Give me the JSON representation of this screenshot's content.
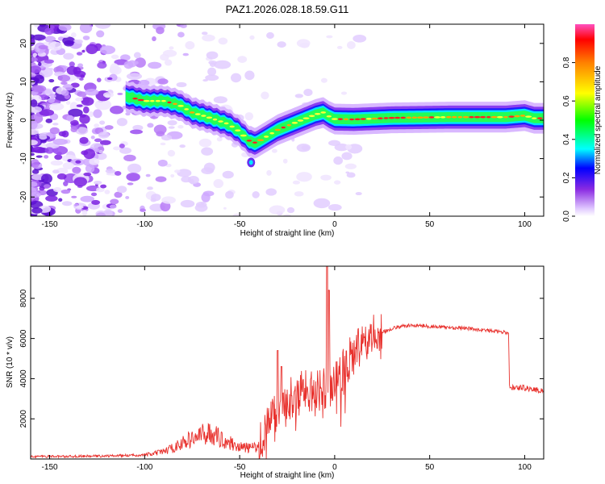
{
  "figure_title": "PAZ1.2026.028.18.59.G11",
  "colors": {
    "snr_line": "#e8312d",
    "ridge_core": "#ff2020"
  },
  "chart_data": [
    {
      "type": "heatmap",
      "name": "spectrogram",
      "title": "PAZ1.2026.028.18.59.G11",
      "xlabel": "Height of straight line (km)",
      "ylabel": "Frequency (Hz)",
      "xlim": [
        -160,
        110
      ],
      "ylim": [
        -25,
        25
      ],
      "x_ticks": [
        -150,
        -100,
        -50,
        0,
        50,
        100
      ],
      "x_tick_labels": [
        "-150",
        "-100",
        "-50",
        "0",
        "50",
        "100"
      ],
      "y_ticks": [
        -20,
        -10,
        0,
        10,
        20
      ],
      "y_tick_labels": [
        "-20",
        "-10",
        "0",
        "10",
        "20"
      ],
      "ridge_x": [
        -108,
        -100,
        -90,
        -82,
        -75,
        -68,
        -62,
        -56,
        -50,
        -46,
        -43,
        -40,
        -35,
        -30,
        -25,
        -20,
        -15,
        -10,
        -6,
        -3,
        0,
        10,
        30,
        60,
        90,
        100,
        105,
        110
      ],
      "ridge_y": [
        6,
        5,
        5,
        4,
        2,
        1,
        0,
        -1,
        -3,
        -5,
        -6,
        -5.5,
        -4,
        -2.5,
        -1.5,
        -0.5,
        0.5,
        1.5,
        2,
        1,
        0.3,
        0.2,
        0.6,
        0.8,
        0.8,
        1.2,
        0.5,
        0.5
      ],
      "colorbar": {
        "label": "Normalized spectral amplitude",
        "range": [
          0,
          1
        ],
        "ticks": [
          0,
          0.2,
          0.4,
          0.6,
          0.8
        ],
        "tick_labels": [
          "0.0",
          "0.2",
          "0.4",
          "0.6",
          "0.8"
        ]
      }
    },
    {
      "type": "line",
      "name": "snr",
      "xlabel": "Height of straight line (km)",
      "ylabel": "SNR (10 * v/v)",
      "xlim": [
        -160,
        110
      ],
      "ylim": [
        0,
        9600
      ],
      "x_ticks": [
        -150,
        -100,
        -50,
        0,
        50,
        100
      ],
      "x_tick_labels": [
        "-150",
        "-100",
        "-50",
        "0",
        "50",
        "100"
      ],
      "y_ticks": [
        2000,
        4000,
        6000,
        8000
      ],
      "y_tick_labels": [
        "2000",
        "4000",
        "6000",
        "8000"
      ],
      "series": [
        {
          "name": "SNR",
          "x": [
            -160,
            -140,
            -120,
            -100,
            -95,
            -90,
            -85,
            -80,
            -75,
            -70,
            -65,
            -60,
            -55,
            -50,
            -45,
            -40,
            -38,
            -35,
            -32,
            -30,
            -28,
            -25,
            -20,
            -15,
            -10,
            -8,
            -5,
            -4,
            -3,
            -2,
            0,
            5,
            10,
            15,
            20,
            25,
            30,
            35,
            40,
            45,
            50,
            60,
            70,
            80,
            90,
            91.5,
            92,
            95,
            100,
            105,
            110
          ],
          "y": [
            130,
            130,
            150,
            200,
            260,
            380,
            550,
            800,
            1000,
            1200,
            1300,
            1000,
            800,
            600,
            550,
            600,
            1200,
            1700,
            2200,
            2600,
            2700,
            3000,
            3200,
            3400,
            3500,
            3500,
            3600,
            3700,
            3500,
            3700,
            3900,
            4600,
            5200,
            5700,
            6100,
            6300,
            6500,
            6600,
            6650,
            6650,
            6600,
            6550,
            6500,
            6400,
            6300,
            6250,
            3600,
            3550,
            3550,
            3450,
            3400
          ],
          "spikes": [
            {
              "x": -4,
              "y": 9600
            },
            {
              "x": -30,
              "y": 5400
            },
            {
              "x": -28,
              "y": 4600
            },
            {
              "x": -3,
              "y": 8400
            }
          ]
        }
      ]
    }
  ]
}
